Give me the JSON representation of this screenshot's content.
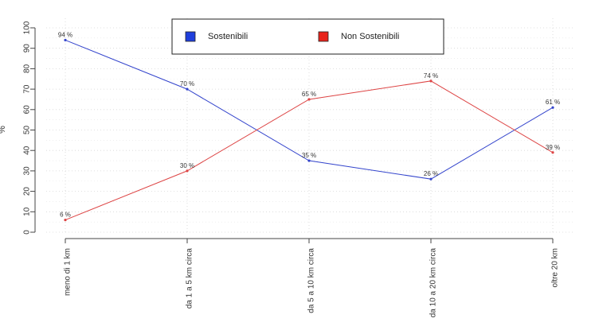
{
  "chart_data": {
    "type": "line",
    "title": "",
    "xlabel": "",
    "ylabel": "%",
    "ylim": [
      0,
      100
    ],
    "yticks": [
      0,
      10,
      20,
      30,
      40,
      50,
      60,
      70,
      80,
      90,
      100
    ],
    "grid": true,
    "legend_position": "top-center",
    "categories": [
      "meno di 1 km",
      "da 1 a 5 km circa",
      "da 5 a 10 km circa",
      "da 10 a 20 km circa",
      "oltre 20 km"
    ],
    "label_suffix": " %",
    "series": [
      {
        "name": "Sostenibili",
        "color": "#3344cc",
        "legend_color": "#1f3fdc",
        "values": [
          94,
          70,
          35,
          26,
          61
        ]
      },
      {
        "name": "Non Sostenibili",
        "color": "#dd4444",
        "legend_color": "#e8241c",
        "values": [
          6,
          30,
          65,
          74,
          39
        ]
      }
    ]
  }
}
